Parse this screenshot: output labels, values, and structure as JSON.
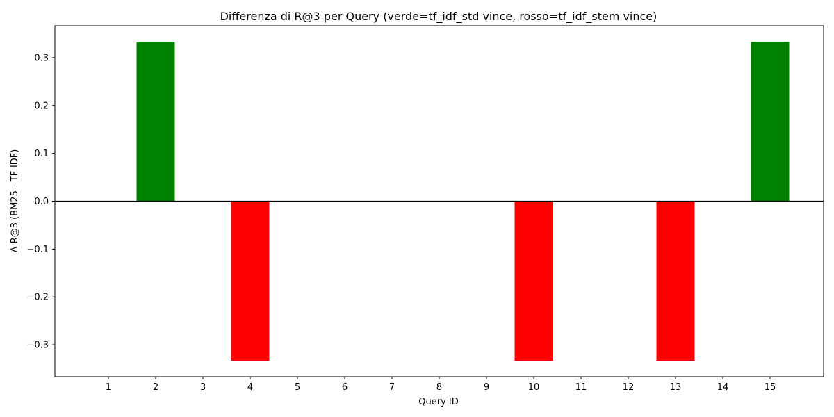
{
  "chart_data": {
    "type": "bar",
    "title": "Differenza di R@3 per Query (verde=tf_idf_std vince, rosso=tf_idf_stem vince)",
    "xlabel": "Query ID",
    "ylabel": "Δ R@3 (BM25 - TF-IDF)",
    "categories": [
      "1",
      "2",
      "3",
      "4",
      "5",
      "6",
      "7",
      "8",
      "9",
      "10",
      "11",
      "12",
      "13",
      "14",
      "15"
    ],
    "values": [
      0,
      0.3333,
      0,
      -0.3333,
      0,
      0,
      0,
      0,
      0,
      -0.3333,
      0,
      0,
      -0.3333,
      0,
      0.3333
    ],
    "bar_colors": [
      "#008000",
      "#008000",
      "#008000",
      "#ff0000",
      "#008000",
      "#008000",
      "#008000",
      "#008000",
      "#008000",
      "#ff0000",
      "#008000",
      "#008000",
      "#ff0000",
      "#008000",
      "#008000"
    ],
    "positive_color": "#008000",
    "negative_color": "#ff0000",
    "ylim": [
      -0.3667,
      0.3667
    ],
    "yticks": [
      -0.3,
      -0.2,
      -0.1,
      0.0,
      0.1,
      0.2,
      0.3
    ],
    "ytick_labels": [
      "−0.3",
      "−0.2",
      "−0.1",
      "0.0",
      "0.1",
      "0.2",
      "0.3"
    ],
    "zero_line": true,
    "grid": false,
    "legend": false
  }
}
